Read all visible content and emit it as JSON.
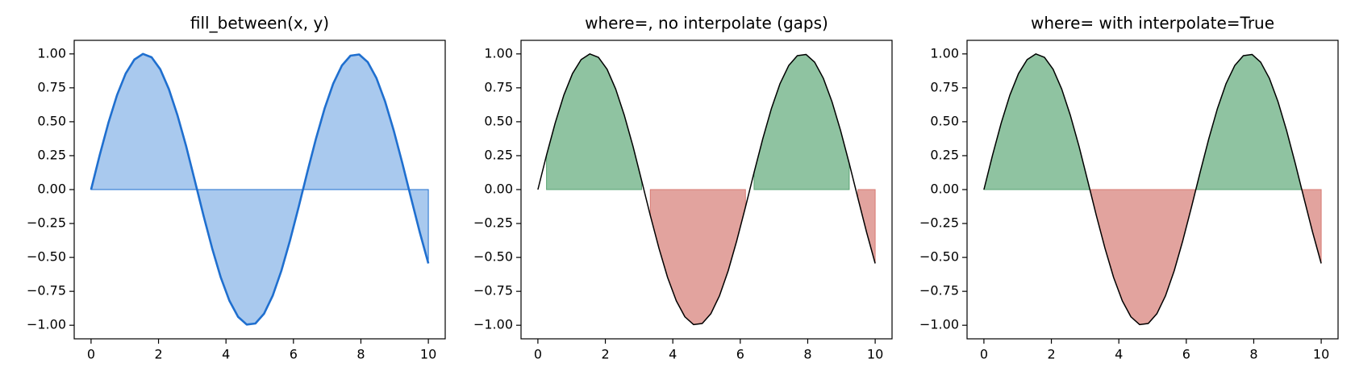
{
  "chart_data": [
    {
      "type": "fill_between",
      "title": "fill_between(x, y)",
      "x": [
        0,
        0.256,
        0.513,
        0.769,
        1.026,
        1.282,
        1.538,
        1.795,
        2.051,
        2.308,
        2.564,
        2.821,
        3.077,
        3.333,
        3.59,
        3.846,
        4.103,
        4.359,
        4.615,
        4.872,
        5.128,
        5.385,
        5.641,
        5.897,
        6.154,
        6.41,
        6.667,
        6.923,
        7.179,
        7.436,
        7.692,
        7.949,
        8.205,
        8.462,
        8.718,
        8.974,
        9.231,
        9.487,
        9.744,
        10
      ],
      "series": [
        {
          "color": "#1f6fcf",
          "values": [
            0,
            0.254,
            0.491,
            0.696,
            0.855,
            0.958,
            1.0,
            0.975,
            0.887,
            0.74,
            0.546,
            0.318,
            0.065,
            -0.191,
            -0.433,
            -0.648,
            -0.82,
            -0.938,
            -0.995,
            -0.987,
            -0.915,
            -0.782,
            -0.599,
            -0.376,
            -0.129,
            0.127,
            0.374,
            0.597,
            0.781,
            0.914,
            0.987,
            0.996,
            0.939,
            0.821,
            0.649,
            0.435,
            0.193,
            -0.062,
            -0.313,
            -0.544
          ]
        }
      ],
      "fill_color": "#a9c9ee",
      "xlim": [
        -0.5,
        10.5
      ],
      "ylim": [
        -1.1,
        1.1
      ],
      "xticks": [
        0,
        2,
        4,
        6,
        8,
        10
      ],
      "yticks": [
        {
          "value": 1,
          "label": "1.00"
        },
        {
          "value": 0.75,
          "label": "0.75"
        },
        {
          "value": 0.5,
          "label": "0.50"
        },
        {
          "value": 0.25,
          "label": "0.25"
        },
        {
          "value": 0,
          "label": "0.00"
        },
        {
          "value": -0.25,
          "label": "−0.25"
        },
        {
          "value": -0.5,
          "label": "−0.50"
        },
        {
          "value": -0.75,
          "label": "−0.75"
        },
        {
          "value": -1,
          "label": "−1.00"
        }
      ]
    },
    {
      "type": "fill_where",
      "title": "where=, no interpolate (gaps)",
      "interpolate": false,
      "x": [
        0,
        0.256,
        0.513,
        0.769,
        1.026,
        1.282,
        1.538,
        1.795,
        2.051,
        2.308,
        2.564,
        2.821,
        3.077,
        3.333,
        3.59,
        3.846,
        4.103,
        4.359,
        4.615,
        4.872,
        5.128,
        5.385,
        5.641,
        5.897,
        6.154,
        6.41,
        6.667,
        6.923,
        7.179,
        7.436,
        7.692,
        7.949,
        8.205,
        8.462,
        8.718,
        8.974,
        9.231,
        9.487,
        9.744,
        10
      ],
      "series": [
        {
          "color": "#000000",
          "values": [
            0,
            0.254,
            0.491,
            0.696,
            0.855,
            0.958,
            1.0,
            0.975,
            0.887,
            0.74,
            0.546,
            0.318,
            0.065,
            -0.191,
            -0.433,
            -0.648,
            -0.82,
            -0.938,
            -0.995,
            -0.987,
            -0.915,
            -0.782,
            -0.599,
            -0.376,
            -0.129,
            0.127,
            0.374,
            0.597,
            0.781,
            0.914,
            0.987,
            0.996,
            0.939,
            0.821,
            0.649,
            0.435,
            0.193,
            -0.062,
            -0.313,
            -0.544
          ]
        }
      ],
      "fills": [
        {
          "where": "positive",
          "color": "#8fc3a1",
          "edge": "#5aa574"
        },
        {
          "where": "negative",
          "color": "#e2a39e",
          "edge": "#d77b73"
        }
      ],
      "xlim": [
        -0.5,
        10.5
      ],
      "ylim": [
        -1.1,
        1.1
      ],
      "xticks": [
        0,
        2,
        4,
        6,
        8,
        10
      ],
      "yticks": [
        {
          "value": 1,
          "label": "1.00"
        },
        {
          "value": 0.75,
          "label": "0.75"
        },
        {
          "value": 0.5,
          "label": "0.50"
        },
        {
          "value": 0.25,
          "label": "0.25"
        },
        {
          "value": 0,
          "label": "0.00"
        },
        {
          "value": -0.25,
          "label": "−0.25"
        },
        {
          "value": -0.5,
          "label": "−0.50"
        },
        {
          "value": -0.75,
          "label": "−0.75"
        },
        {
          "value": -1,
          "label": "−1.00"
        }
      ]
    },
    {
      "type": "fill_where",
      "title": "where= with interpolate=True",
      "interpolate": true,
      "x": [
        0,
        0.256,
        0.513,
        0.769,
        1.026,
        1.282,
        1.538,
        1.795,
        2.051,
        2.308,
        2.564,
        2.821,
        3.077,
        3.333,
        3.59,
        3.846,
        4.103,
        4.359,
        4.615,
        4.872,
        5.128,
        5.385,
        5.641,
        5.897,
        6.154,
        6.41,
        6.667,
        6.923,
        7.179,
        7.436,
        7.692,
        7.949,
        8.205,
        8.462,
        8.718,
        8.974,
        9.231,
        9.487,
        9.744,
        10
      ],
      "series": [
        {
          "color": "#000000",
          "values": [
            0,
            0.254,
            0.491,
            0.696,
            0.855,
            0.958,
            1.0,
            0.975,
            0.887,
            0.74,
            0.546,
            0.318,
            0.065,
            -0.191,
            -0.433,
            -0.648,
            -0.82,
            -0.938,
            -0.995,
            -0.987,
            -0.915,
            -0.782,
            -0.599,
            -0.376,
            -0.129,
            0.127,
            0.374,
            0.597,
            0.781,
            0.914,
            0.987,
            0.996,
            0.939,
            0.821,
            0.649,
            0.435,
            0.193,
            -0.062,
            -0.313,
            -0.544
          ]
        }
      ],
      "fills": [
        {
          "where": "positive",
          "color": "#8fc3a1",
          "edge": "#5aa574"
        },
        {
          "where": "negative",
          "color": "#e2a39e",
          "edge": "#d77b73"
        }
      ],
      "xlim": [
        -0.5,
        10.5
      ],
      "ylim": [
        -1.1,
        1.1
      ],
      "xticks": [
        0,
        2,
        4,
        6,
        8,
        10
      ],
      "yticks": [
        {
          "value": 1,
          "label": "1.00"
        },
        {
          "value": 0.75,
          "label": "0.75"
        },
        {
          "value": 0.5,
          "label": "0.50"
        },
        {
          "value": 0.25,
          "label": "0.25"
        },
        {
          "value": 0,
          "label": "0.00"
        },
        {
          "value": -0.25,
          "label": "−0.25"
        },
        {
          "value": -0.5,
          "label": "−0.50"
        },
        {
          "value": -0.75,
          "label": "−0.75"
        },
        {
          "value": -1,
          "label": "−1.00"
        }
      ]
    }
  ]
}
